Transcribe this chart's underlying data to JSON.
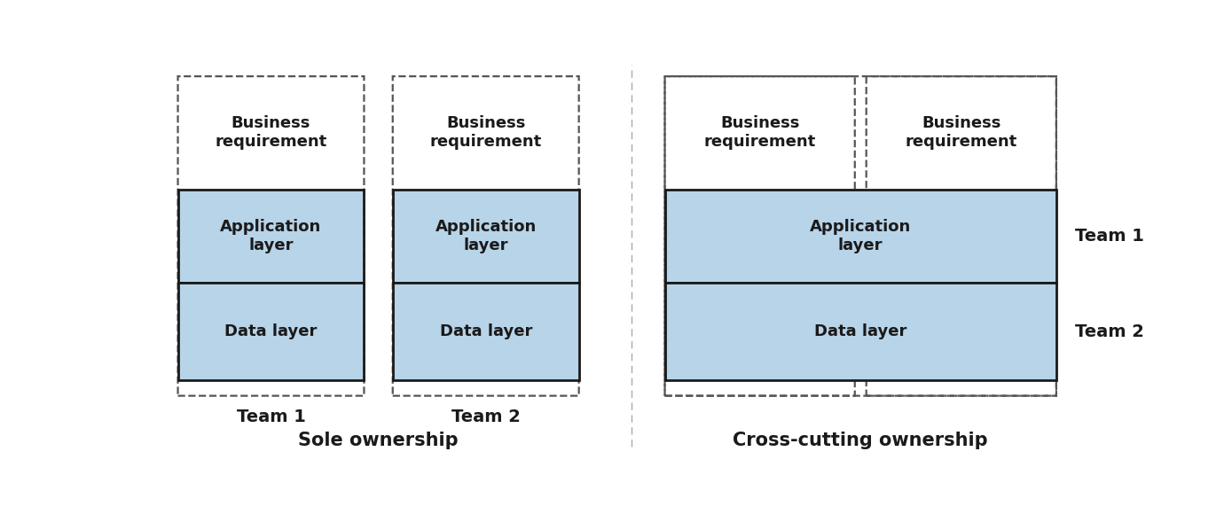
{
  "bg_color": "#ffffff",
  "box_fill": "#b8d4e8",
  "box_edge": "#1a1a1a",
  "dashed_edge": "#555555",
  "text_color": "#1a1a1a",
  "title_fontsize": 15,
  "label_fontsize": 13,
  "team_label_fontsize": 14,
  "sole_title": "Sole ownership",
  "cross_title": "Cross-cutting ownership",
  "team1_label": "Team 1",
  "team2_label": "Team 2",
  "app_layer": "Application\nlayer",
  "data_layer": "Data layer",
  "biz_req": "Business\nrequirement"
}
